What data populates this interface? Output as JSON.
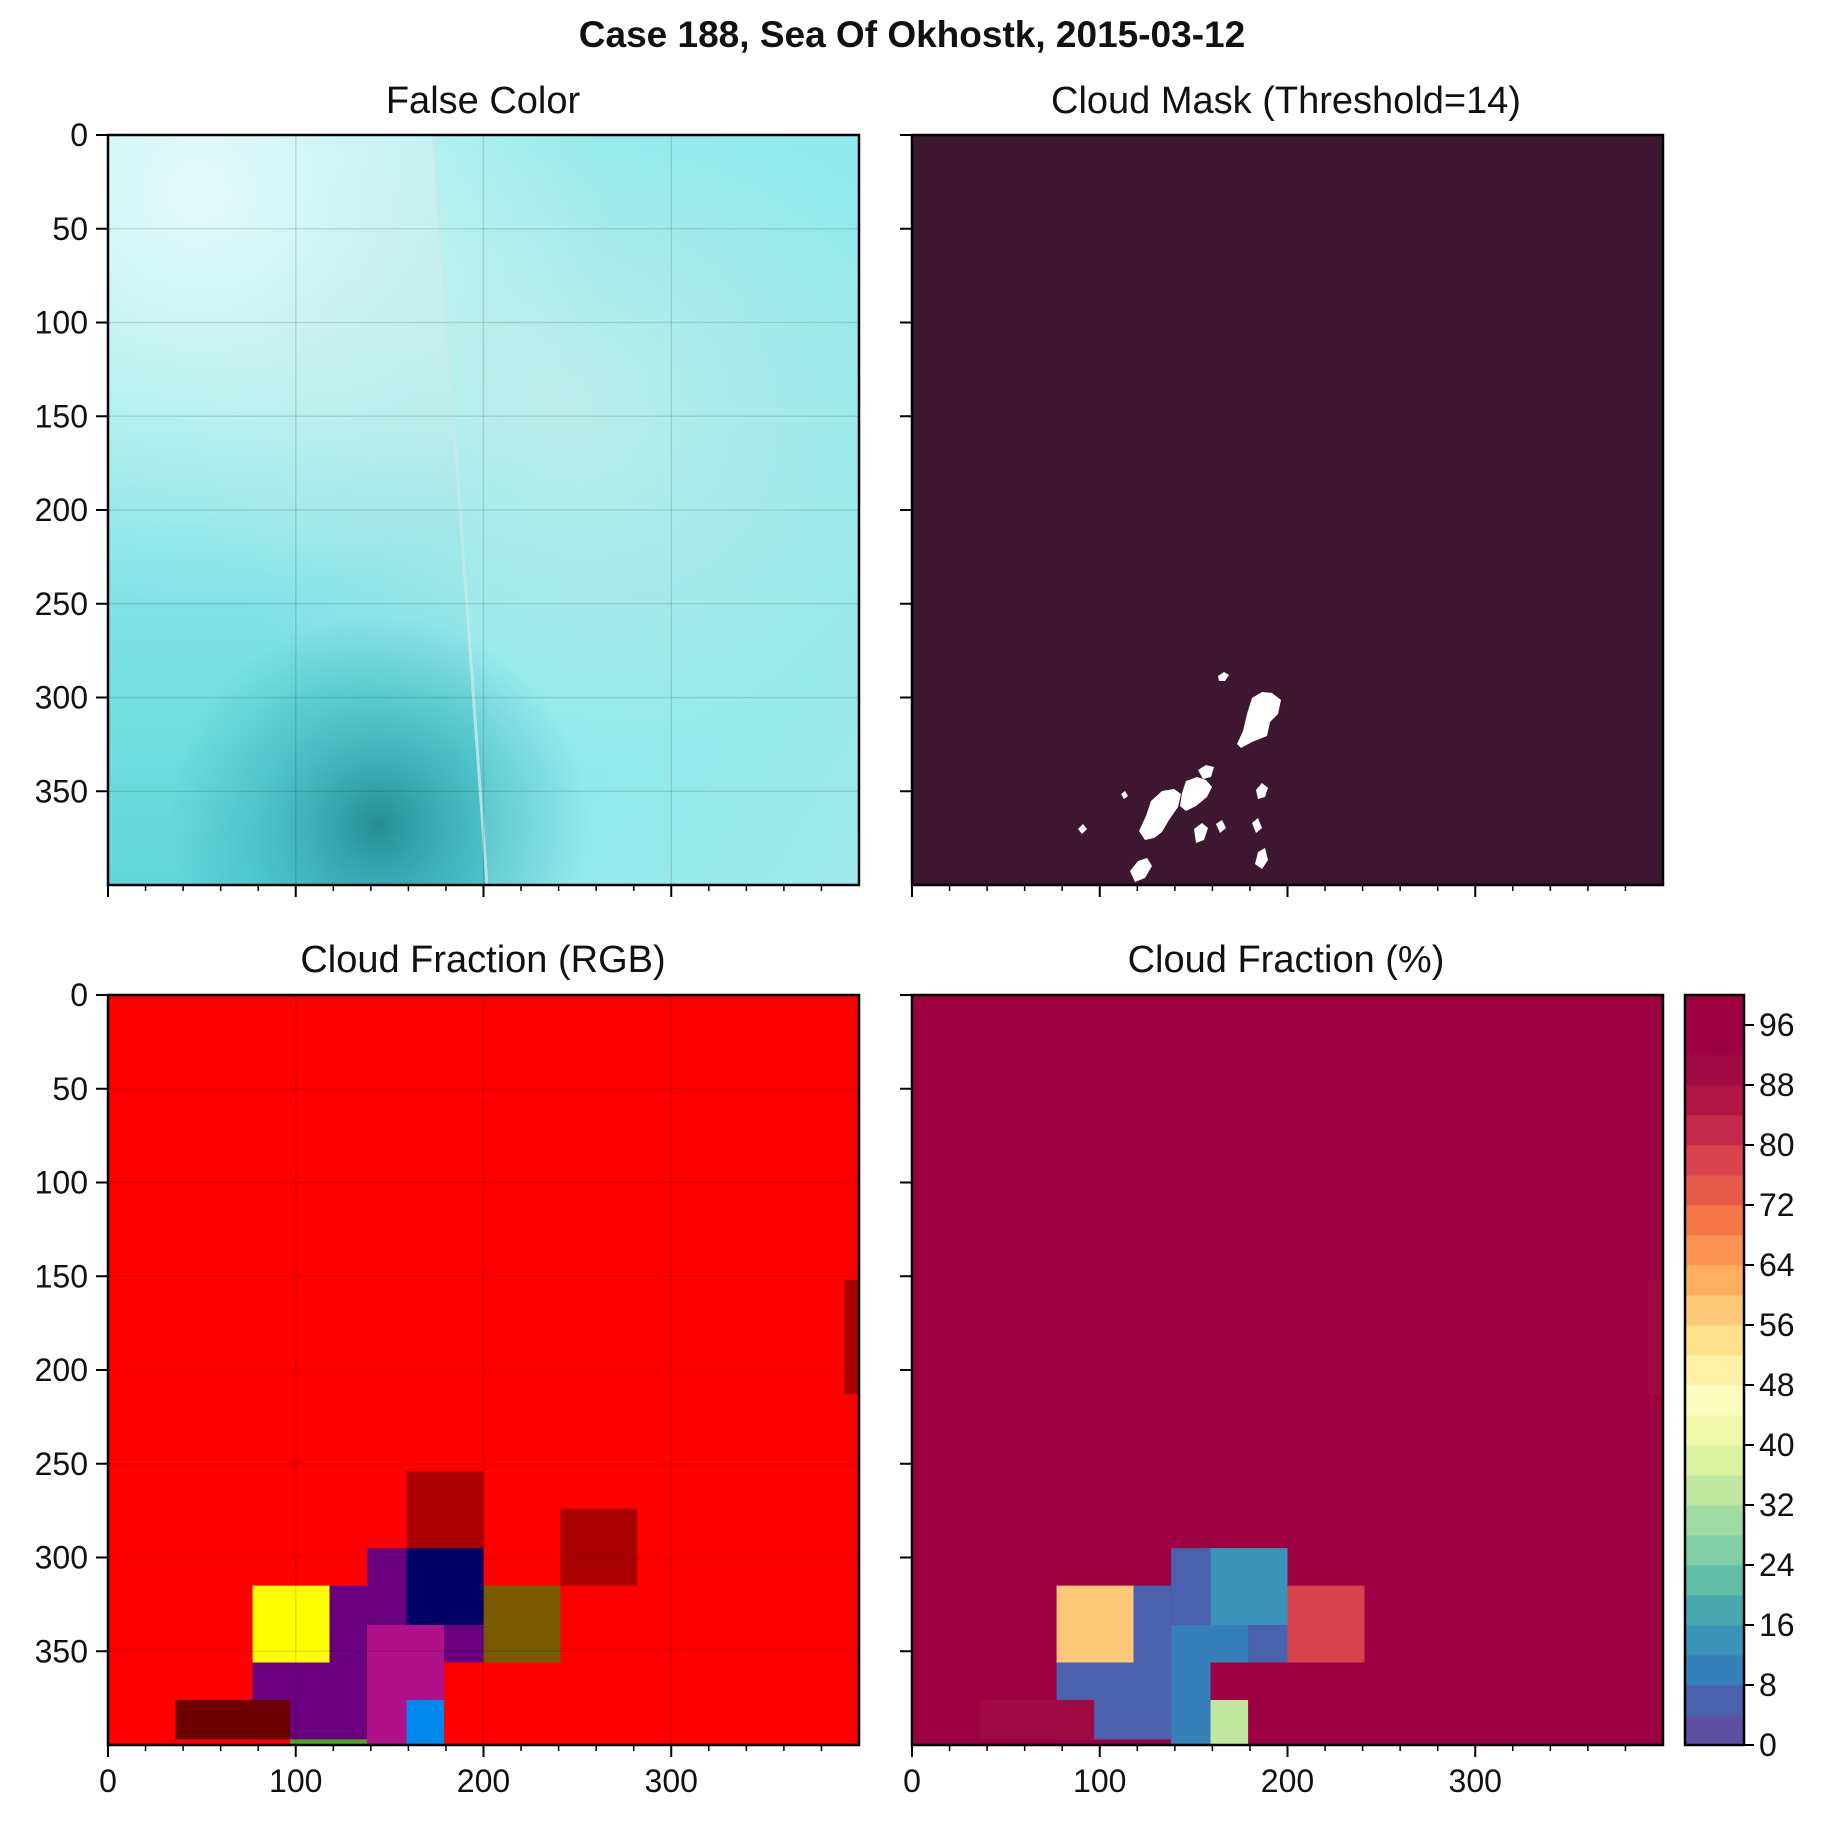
{
  "figure": {
    "suptitle": "Case 188, Sea Of Okhostk, 2015-03-12"
  },
  "panels": {
    "false_color": {
      "title": "False Color"
    },
    "cloud_mask": {
      "title": "Cloud Mask (Threshold=14)"
    },
    "cf_rgb": {
      "title": "Cloud Fraction (RGB)"
    },
    "cf_pct": {
      "title": "Cloud Fraction (%)"
    }
  },
  "colors": {
    "mask_background": "#3d1730",
    "mask_cloud": "#ffffff",
    "rgb_background": "#ff0000",
    "pct_background": "#9e0142"
  },
  "chart_data": [
    {
      "id": "false_color",
      "type": "heatmap",
      "title": "False Color",
      "xlim": [
        0,
        400
      ],
      "ylim": [
        400,
        0
      ],
      "xticks": [
        0,
        100,
        200,
        300
      ],
      "yticks": [
        0,
        50,
        100,
        150,
        200,
        250,
        300,
        350
      ],
      "tick_labels_x": false,
      "tick_labels_y": true,
      "grid": true,
      "description_colors": [
        "#8ee8ea",
        "#5fd8de",
        "#d8e8e8",
        "#1d8d97"
      ]
    },
    {
      "id": "cloud_mask",
      "type": "heatmap",
      "title": "Cloud Mask (Threshold=14)",
      "xlim": [
        0,
        400
      ],
      "ylim": [
        400,
        0
      ],
      "xticks": [
        0,
        100,
        200,
        300
      ],
      "yticks": [
        0,
        50,
        100,
        150,
        200,
        250,
        300,
        350
      ],
      "tick_labels_x": false,
      "tick_labels_y": false,
      "grid": false,
      "threshold": 14
    },
    {
      "id": "cf_rgb",
      "type": "heatmap",
      "title": "Cloud Fraction (RGB)",
      "xlim": [
        0,
        400
      ],
      "ylim": [
        400,
        0
      ],
      "xticks": [
        0,
        100,
        200,
        300
      ],
      "yticks": [
        0,
        50,
        100,
        150,
        200,
        250,
        300,
        350
      ],
      "tick_labels_x": true,
      "tick_labels_y": true,
      "grid": true,
      "background": "#ff0000",
      "cells": [
        {
          "x0": 392,
          "x1": 400,
          "y0": 152,
          "y1": 213,
          "color": "#aa0000"
        },
        {
          "x0": 159,
          "x1": 200,
          "y0": 254,
          "y1": 295,
          "color": "#aa0000"
        },
        {
          "x0": 241,
          "x1": 282,
          "y0": 274,
          "y1": 315,
          "color": "#aa0000"
        },
        {
          "x0": 138,
          "x1": 159,
          "y0": 295,
          "y1": 336,
          "color": "#6a0080"
        },
        {
          "x0": 159,
          "x1": 200,
          "y0": 295,
          "y1": 336,
          "color": "#000066"
        },
        {
          "x0": 77,
          "x1": 118,
          "y0": 315,
          "y1": 356,
          "color": "#ffff00"
        },
        {
          "x0": 118,
          "x1": 138,
          "y0": 315,
          "y1": 356,
          "color": "#6a0080"
        },
        {
          "x0": 138,
          "x1": 159,
          "y0": 336,
          "y1": 356,
          "color": "#b0108a"
        },
        {
          "x0": 159,
          "x1": 179,
          "y0": 336,
          "y1": 356,
          "color": "#b0108a"
        },
        {
          "x0": 179,
          "x1": 200,
          "y0": 336,
          "y1": 356,
          "color": "#6a0080"
        },
        {
          "x0": 200,
          "x1": 241,
          "y0": 315,
          "y1": 356,
          "color": "#7a5a00"
        },
        {
          "x0": 77,
          "x1": 138,
          "y0": 356,
          "y1": 397,
          "color": "#6a0080"
        },
        {
          "x0": 138,
          "x1": 179,
          "y0": 356,
          "y1": 376,
          "color": "#b0108a"
        },
        {
          "x0": 138,
          "x1": 159,
          "y0": 376,
          "y1": 400,
          "color": "#b0108a"
        },
        {
          "x0": 159,
          "x1": 179,
          "y0": 376,
          "y1": 400,
          "color": "#0088ee"
        },
        {
          "x0": 36,
          "x1": 97,
          "y0": 376,
          "y1": 397,
          "color": "#6a0000"
        },
        {
          "x0": 97,
          "x1": 138,
          "y0": 397,
          "y1": 400,
          "color": "#44aa22"
        }
      ]
    },
    {
      "id": "cf_pct",
      "type": "heatmap",
      "title": "Cloud Fraction (%)",
      "xlim": [
        0,
        400
      ],
      "ylim": [
        400,
        0
      ],
      "xticks": [
        0,
        100,
        200,
        300
      ],
      "yticks": [
        0,
        50,
        100,
        150,
        200,
        250,
        300,
        350
      ],
      "tick_labels_x": true,
      "tick_labels_y": false,
      "grid": false,
      "background_value": 100,
      "cells": [
        {
          "x0": 392,
          "x1": 400,
          "y0": 152,
          "y1": 213,
          "value": 90
        },
        {
          "x0": 159,
          "x1": 200,
          "y0": 254,
          "y1": 295,
          "value": 93
        },
        {
          "x0": 241,
          "x1": 282,
          "y0": 274,
          "y1": 315,
          "value": 93
        },
        {
          "x0": 138,
          "x1": 159,
          "y0": 295,
          "y1": 336,
          "value": 4
        },
        {
          "x0": 159,
          "x1": 200,
          "y0": 295,
          "y1": 336,
          "value": 15
        },
        {
          "x0": 77,
          "x1": 118,
          "y0": 315,
          "y1": 356,
          "value": 58
        },
        {
          "x0": 118,
          "x1": 138,
          "y0": 315,
          "y1": 356,
          "value": 4
        },
        {
          "x0": 138,
          "x1": 179,
          "y0": 336,
          "y1": 356,
          "value": 11
        },
        {
          "x0": 179,
          "x1": 200,
          "y0": 336,
          "y1": 356,
          "value": 4
        },
        {
          "x0": 200,
          "x1": 241,
          "y0": 315,
          "y1": 356,
          "value": 79
        },
        {
          "x0": 77,
          "x1": 138,
          "y0": 356,
          "y1": 397,
          "value": 4
        },
        {
          "x0": 138,
          "x1": 159,
          "y0": 356,
          "y1": 400,
          "value": 11
        },
        {
          "x0": 159,
          "x1": 179,
          "y0": 376,
          "y1": 400,
          "value": 33
        },
        {
          "x0": 36,
          "x1": 97,
          "y0": 376,
          "y1": 397,
          "value": 88
        }
      ],
      "colorbar": {
        "min": 0,
        "max": 100,
        "step": 4,
        "tick_labels": [
          "0",
          "8",
          "16",
          "24",
          "32",
          "40",
          "48",
          "56",
          "64",
          "72",
          "80",
          "88",
          "96"
        ],
        "colors": [
          "#5e4fa2",
          "#4a61ae",
          "#3680b9",
          "#3a94b9",
          "#49a8ad",
          "#62bda7",
          "#81cda5",
          "#a1dba4",
          "#c0e6a0",
          "#dcf1a0",
          "#f0f8aa",
          "#fbfdbf",
          "#fff1a8",
          "#fee08b",
          "#fdc878",
          "#fdae61",
          "#fa9353",
          "#f57748",
          "#e55b47",
          "#d8434e",
          "#c42a4b",
          "#b01645",
          "#a00a43",
          "#9e0142",
          "#9e0142"
        ]
      }
    }
  ]
}
